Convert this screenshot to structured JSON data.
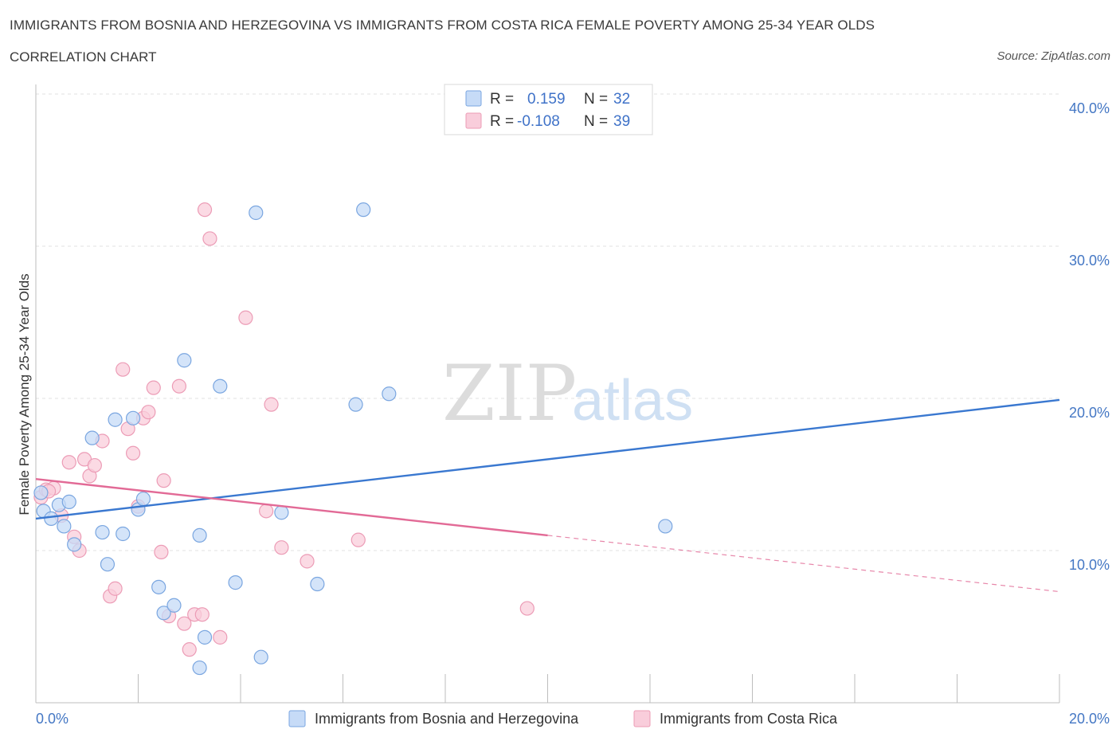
{
  "title": "IMMIGRANTS FROM BOSNIA AND HERZEGOVINA VS IMMIGRANTS FROM COSTA RICA FEMALE POVERTY AMONG 25-34 YEAR OLDS",
  "subtitle": "CORRELATION CHART",
  "source": "Source: ZipAtlas.com",
  "watermark": {
    "zip": "ZIP",
    "atlas": "atlas"
  },
  "colors": {
    "blue_fill": "#c6dbf7",
    "blue_stroke": "#7aa6e0",
    "blue_line": "#3a78d0",
    "pink_fill": "#f9cddb",
    "pink_stroke": "#ec9cb6",
    "pink_line": "#e26a96",
    "grid": "#e2e2e2",
    "axis_text": "#4477c4"
  },
  "legend": {
    "rows": [
      {
        "r_label": "R =",
        "r_value": "0.159",
        "n_label": "N =",
        "n_value": "32"
      },
      {
        "r_label": "R =",
        "r_value": "-0.108",
        "n_label": "N =",
        "n_value": "39"
      }
    ]
  },
  "chart_data": {
    "type": "scatter",
    "ylabel": "Female Poverty Among 25-34 Year Olds",
    "xlim": [
      0,
      20
    ],
    "ylim": [
      0,
      40
    ],
    "x_tick_labels": [
      "0.0%",
      "20.0%"
    ],
    "y_tick_labels": [
      "10.0%",
      "20.0%",
      "30.0%",
      "40.0%"
    ],
    "y_ticks": [
      10,
      20,
      30,
      40
    ],
    "series": [
      {
        "name": "Immigrants from Bosnia and Herzegovina",
        "points": [
          [
            0.15,
            12.6
          ],
          [
            0.3,
            12.1
          ],
          [
            0.45,
            13.0
          ],
          [
            0.55,
            11.6
          ],
          [
            0.65,
            13.2
          ],
          [
            0.75,
            10.4
          ],
          [
            1.1,
            17.4
          ],
          [
            1.3,
            11.2
          ],
          [
            1.4,
            9.1
          ],
          [
            1.55,
            18.6
          ],
          [
            1.7,
            11.1
          ],
          [
            1.9,
            18.7
          ],
          [
            2.0,
            12.7
          ],
          [
            2.1,
            13.4
          ],
          [
            2.4,
            7.6
          ],
          [
            2.5,
            5.9
          ],
          [
            2.7,
            6.4
          ],
          [
            2.9,
            22.5
          ],
          [
            3.2,
            11.0
          ],
          [
            3.3,
            4.3
          ],
          [
            3.6,
            20.8
          ],
          [
            3.9,
            7.9
          ],
          [
            4.3,
            32.2
          ],
          [
            4.8,
            12.5
          ],
          [
            5.5,
            7.8
          ],
          [
            6.25,
            19.6
          ],
          [
            6.4,
            32.4
          ],
          [
            6.9,
            20.3
          ],
          [
            12.3,
            11.6
          ],
          [
            3.2,
            2.3
          ],
          [
            4.4,
            3.0
          ],
          [
            0.1,
            13.8
          ]
        ],
        "trend": {
          "x": [
            0,
            20
          ],
          "y": [
            12.1,
            19.9
          ]
        }
      },
      {
        "name": "Immigrants from Costa Rica",
        "points": [
          [
            0.1,
            13.5
          ],
          [
            0.2,
            14.0
          ],
          [
            0.35,
            14.1
          ],
          [
            0.5,
            12.3
          ],
          [
            0.65,
            15.8
          ],
          [
            0.75,
            10.9
          ],
          [
            0.85,
            10.0
          ],
          [
            0.95,
            16.0
          ],
          [
            1.05,
            14.9
          ],
          [
            1.15,
            15.6
          ],
          [
            1.3,
            17.2
          ],
          [
            1.45,
            7.0
          ],
          [
            1.55,
            7.5
          ],
          [
            1.7,
            21.9
          ],
          [
            1.8,
            18.0
          ],
          [
            1.9,
            16.4
          ],
          [
            2.1,
            18.7
          ],
          [
            2.2,
            19.1
          ],
          [
            2.3,
            20.7
          ],
          [
            2.45,
            9.9
          ],
          [
            2.5,
            14.6
          ],
          [
            2.6,
            5.7
          ],
          [
            2.8,
            20.8
          ],
          [
            2.9,
            5.2
          ],
          [
            3.0,
            3.5
          ],
          [
            3.1,
            5.8
          ],
          [
            3.25,
            5.8
          ],
          [
            3.3,
            32.4
          ],
          [
            3.4,
            30.5
          ],
          [
            3.6,
            4.3
          ],
          [
            4.1,
            25.3
          ],
          [
            4.5,
            12.6
          ],
          [
            4.6,
            19.6
          ],
          [
            4.8,
            10.2
          ],
          [
            5.3,
            9.3
          ],
          [
            6.3,
            10.7
          ],
          [
            9.6,
            6.2
          ],
          [
            2.0,
            12.9
          ],
          [
            0.25,
            13.9
          ]
        ],
        "trend_solid": {
          "x": [
            0,
            10
          ],
          "y": [
            14.7,
            11.0
          ]
        },
        "trend_dashed": {
          "x": [
            10,
            20
          ],
          "y": [
            11.0,
            7.3
          ]
        }
      }
    ],
    "legend_placement": "top-center",
    "grid": true
  }
}
